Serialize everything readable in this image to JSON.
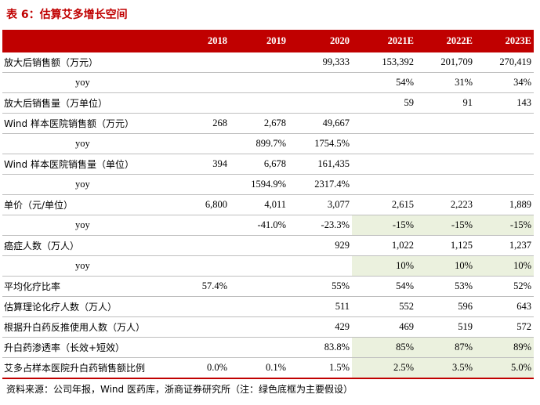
{
  "title": "表 6：估算艾多增长空间",
  "columns": [
    "",
    "2018",
    "2019",
    "2020",
    "2021E",
    "2022E",
    "2023E"
  ],
  "rows": [
    {
      "label": "放大后销售额（万元）",
      "sub": false,
      "cells": [
        "",
        "",
        "99,333",
        "153,392",
        "201,709",
        "270,419"
      ],
      "green": [
        false,
        false,
        false,
        false,
        false,
        false
      ]
    },
    {
      "label": "yoy",
      "sub": true,
      "cells": [
        "",
        "",
        "",
        "54%",
        "31%",
        "34%"
      ],
      "green": [
        false,
        false,
        false,
        false,
        false,
        false
      ]
    },
    {
      "label": "放大后销售量（万单位）",
      "sub": false,
      "cells": [
        "",
        "",
        "",
        "59",
        "91",
        "143"
      ],
      "green": [
        false,
        false,
        false,
        false,
        false,
        false
      ]
    },
    {
      "label": "Wind 样本医院销售额（万元）",
      "sub": false,
      "cells": [
        "268",
        "2,678",
        "49,667",
        "",
        "",
        ""
      ],
      "green": [
        false,
        false,
        false,
        false,
        false,
        false
      ]
    },
    {
      "label": "yoy",
      "sub": true,
      "cells": [
        "",
        "899.7%",
        "1754.5%",
        "",
        "",
        ""
      ],
      "green": [
        false,
        false,
        false,
        false,
        false,
        false
      ]
    },
    {
      "label": "Wind 样本医院销售量（单位）",
      "sub": false,
      "cells": [
        "394",
        "6,678",
        "161,435",
        "",
        "",
        ""
      ],
      "green": [
        false,
        false,
        false,
        false,
        false,
        false
      ]
    },
    {
      "label": "yoy",
      "sub": true,
      "cells": [
        "",
        "1594.9%",
        "2317.4%",
        "",
        "",
        ""
      ],
      "green": [
        false,
        false,
        false,
        false,
        false,
        false
      ]
    },
    {
      "label": "单价（元/单位）",
      "sub": false,
      "cells": [
        "6,800",
        "4,011",
        "3,077",
        "2,615",
        "2,223",
        "1,889"
      ],
      "green": [
        false,
        false,
        false,
        false,
        false,
        false
      ]
    },
    {
      "label": "yoy",
      "sub": true,
      "cells": [
        "",
        "-41.0%",
        "-23.3%",
        "-15%",
        "-15%",
        "-15%"
      ],
      "green": [
        false,
        false,
        false,
        true,
        true,
        true
      ]
    },
    {
      "label": "癌症人数（万人）",
      "sub": false,
      "cells": [
        "",
        "",
        "929",
        "1,022",
        "1,125",
        "1,237"
      ],
      "green": [
        false,
        false,
        false,
        false,
        false,
        false
      ]
    },
    {
      "label": "yoy",
      "sub": true,
      "cells": [
        "",
        "",
        "",
        "10%",
        "10%",
        "10%"
      ],
      "green": [
        false,
        false,
        false,
        true,
        true,
        true
      ]
    },
    {
      "label": "平均化疗比率",
      "sub": false,
      "cells": [
        "57.4%",
        "",
        "55%",
        "54%",
        "53%",
        "52%"
      ],
      "green": [
        false,
        false,
        false,
        false,
        false,
        false
      ]
    },
    {
      "label": "估算理论化疗人数（万人）",
      "sub": false,
      "cells": [
        "",
        "",
        "511",
        "552",
        "596",
        "643"
      ],
      "green": [
        false,
        false,
        false,
        false,
        false,
        false
      ]
    },
    {
      "label": "根据升白药反推使用人数（万人）",
      "sub": false,
      "cells": [
        "",
        "",
        "429",
        "469",
        "519",
        "572"
      ],
      "green": [
        false,
        false,
        false,
        false,
        false,
        false
      ]
    },
    {
      "label": "升白药渗透率（长效+短效）",
      "sub": false,
      "cells": [
        "",
        "",
        "83.8%",
        "85%",
        "87%",
        "89%"
      ],
      "green": [
        false,
        false,
        false,
        true,
        true,
        true
      ]
    },
    {
      "label": "艾多占样本医院升白药销售额比例",
      "sub": false,
      "cells": [
        "0.0%",
        "0.1%",
        "1.5%",
        "2.5%",
        "3.5%",
        "5.0%"
      ],
      "green": [
        false,
        false,
        false,
        true,
        true,
        true
      ]
    }
  ],
  "source": "资料来源：公司年报，Wind 医药库，浙商证券研究所（注：绿色底框为主要假设）",
  "colors": {
    "header_bg": "#c00000",
    "assumption_bg": "#ebf1de",
    "title": "#c00000"
  }
}
